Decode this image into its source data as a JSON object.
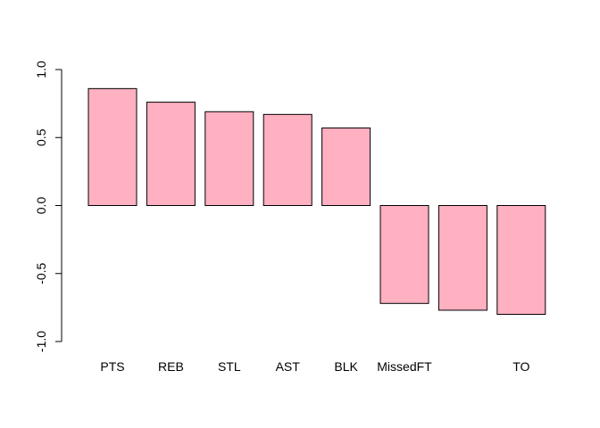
{
  "chart_data": {
    "type": "bar",
    "categories": [
      "PTS",
      "REB",
      "STL",
      "AST",
      "BLK",
      "MissedFT",
      "",
      "TO"
    ],
    "values": [
      0.86,
      0.76,
      0.69,
      0.67,
      0.57,
      -0.72,
      -0.77,
      -0.8
    ],
    "ylim": [
      -1.0,
      1.0
    ],
    "yticks": [
      -1.0,
      -0.5,
      0.0,
      0.5,
      1.0
    ],
    "ytick_labels": [
      "-1.0",
      "-0.5",
      "0.0",
      "0.5",
      "1.0"
    ],
    "title": "",
    "xlabel": "",
    "ylabel": "",
    "grid": false,
    "colors": {
      "bar_fill": "#FFB0C1",
      "bar_stroke": "#000000",
      "axis": "#000000"
    }
  }
}
